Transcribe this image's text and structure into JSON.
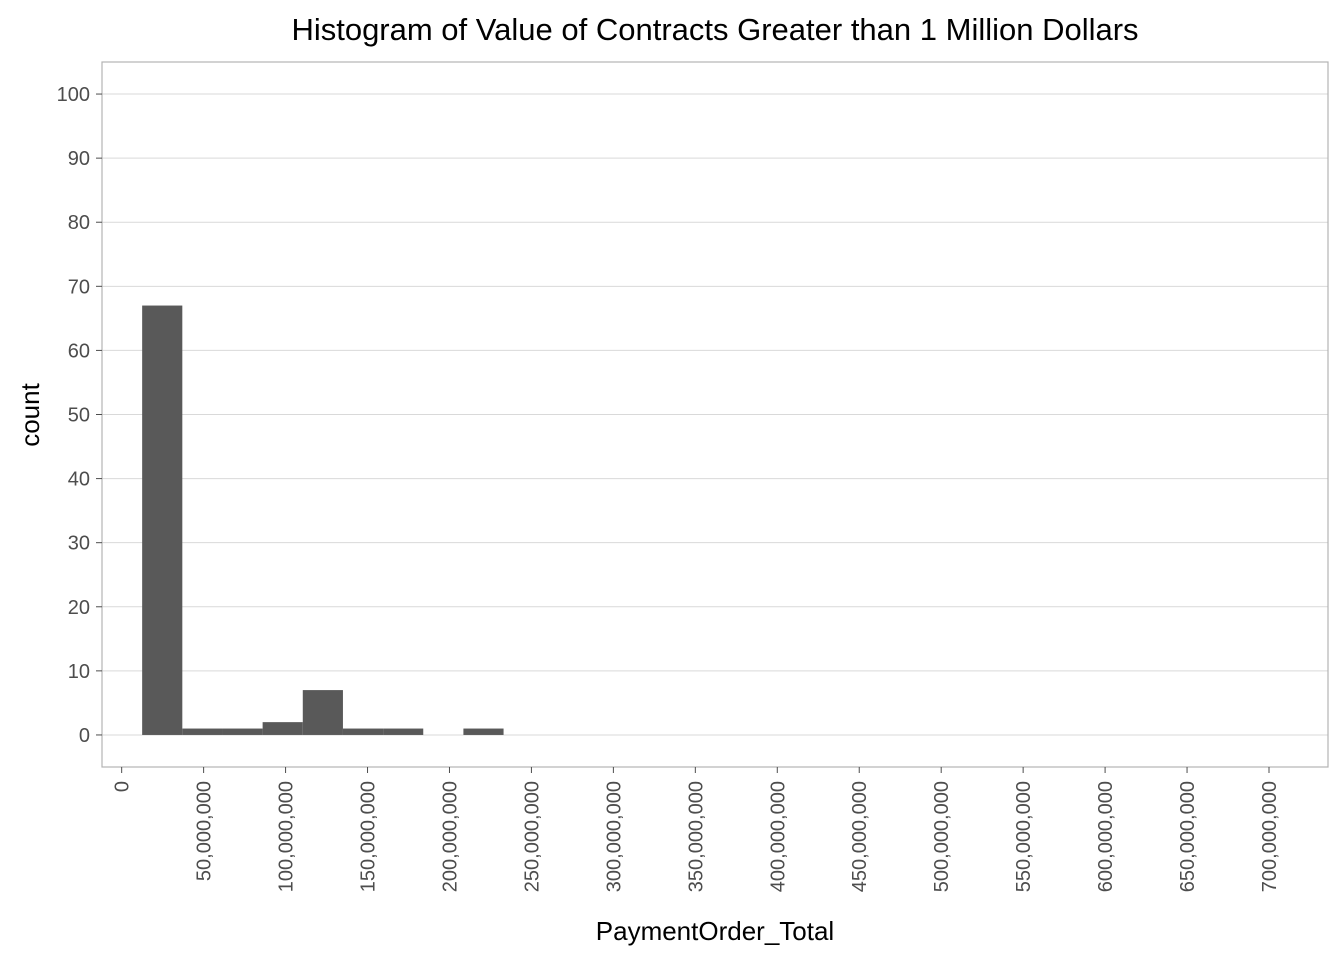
{
  "chart_data": {
    "type": "bar",
    "title": "Histogram of Value of Contracts Greater than 1 Million Dollars",
    "xlabel": "PaymentOrder_Total",
    "ylabel": "count",
    "xlim": [
      -12000000,
      736000000
    ],
    "ylim": [
      -5,
      105
    ],
    "grid": true,
    "y_ticks": [
      {
        "value": 0,
        "label": "0"
      },
      {
        "value": 10,
        "label": "10"
      },
      {
        "value": 20,
        "label": "20"
      },
      {
        "value": 30,
        "label": "30"
      },
      {
        "value": 40,
        "label": "40"
      },
      {
        "value": 50,
        "label": "50"
      },
      {
        "value": 60,
        "label": "60"
      },
      {
        "value": 70,
        "label": "70"
      },
      {
        "value": 80,
        "label": "80"
      },
      {
        "value": 90,
        "label": "90"
      },
      {
        "value": 100,
        "label": "100"
      }
    ],
    "x_ticks": [
      {
        "value": 0,
        "label": "0"
      },
      {
        "value": 50000000,
        "label": "50,000,000"
      },
      {
        "value": 100000000,
        "label": "100,000,000"
      },
      {
        "value": 150000000,
        "label": "150,000,000"
      },
      {
        "value": 200000000,
        "label": "200,000,000"
      },
      {
        "value": 250000000,
        "label": "250,000,000"
      },
      {
        "value": 300000000,
        "label": "300,000,000"
      },
      {
        "value": 350000000,
        "label": "350,000,000"
      },
      {
        "value": 400000000,
        "label": "400,000,000"
      },
      {
        "value": 450000000,
        "label": "450,000,000"
      },
      {
        "value": 500000000,
        "label": "500,000,000"
      },
      {
        "value": 550000000,
        "label": "550,000,000"
      },
      {
        "value": 600000000,
        "label": "600,000,000"
      },
      {
        "value": 650000000,
        "label": "650,000,000"
      },
      {
        "value": 700000000,
        "label": "700,000,000"
      }
    ],
    "bins": [
      {
        "x_start": 12500000,
        "x_end": 37000000,
        "count": 67
      },
      {
        "x_start": 37000000,
        "x_end": 61500000,
        "count": 1
      },
      {
        "x_start": 61500000,
        "x_end": 86000000,
        "count": 1
      },
      {
        "x_start": 86000000,
        "x_end": 110500000,
        "count": 2
      },
      {
        "x_start": 110500000,
        "x_end": 135000000,
        "count": 7
      },
      {
        "x_start": 135000000,
        "x_end": 159500000,
        "count": 1
      },
      {
        "x_start": 159500000,
        "x_end": 184000000,
        "count": 1
      },
      {
        "x_start": 184000000,
        "x_end": 208500000,
        "count": 0
      },
      {
        "x_start": 208500000,
        "x_end": 233000000,
        "count": 1
      }
    ]
  }
}
